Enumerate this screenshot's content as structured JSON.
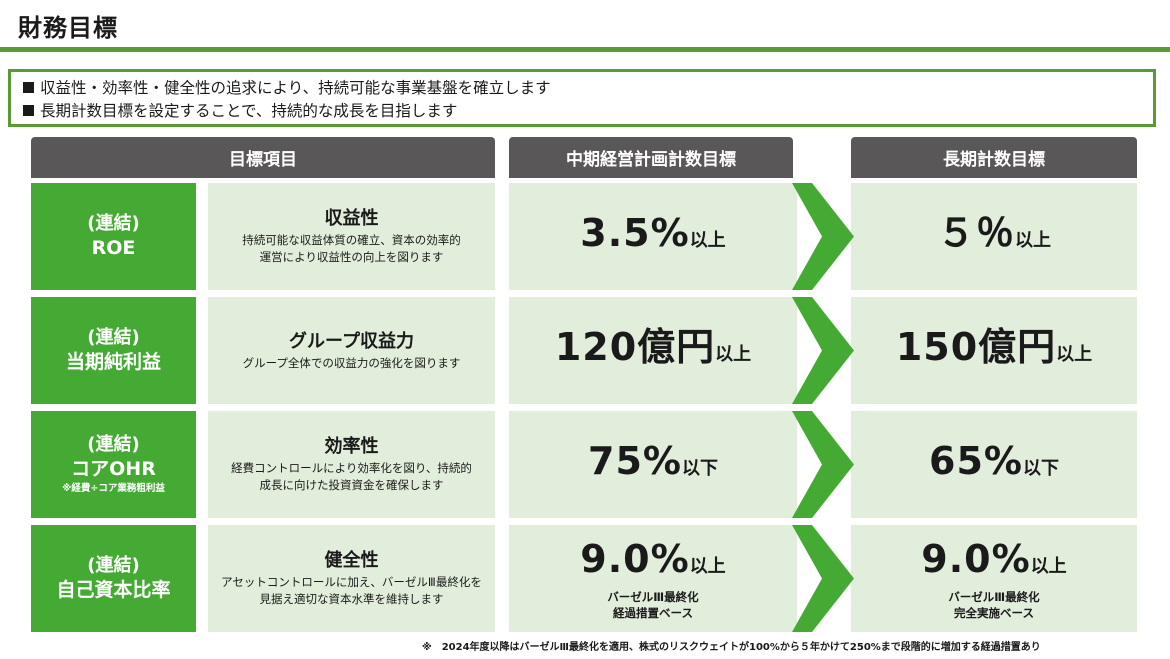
{
  "title": "財務目標",
  "summary": [
    "■",
    "収益性・効率性・健全性の追求により、持続可能な事業基盤を確立します",
    "長期計数目標を設定することで、持続的な成長を目指します"
  ],
  "headers": {
    "items": "目標項目",
    "mid_term": "中期経営計画計数目標",
    "long_term": "長期計数目標"
  },
  "rows": [
    {
      "scope": "(連結)",
      "metric": "ROE",
      "metric_note": "",
      "category": "収益性",
      "description": [
        "持続可能な収益体質の確立、資本の効率的",
        "運営により収益性の向上を図ります"
      ],
      "mid_value": "3.5%",
      "mid_suffix": "以上",
      "mid_note": [
        "",
        ""
      ],
      "long_value": "５％",
      "long_suffix": "以上",
      "long_note": [
        "",
        ""
      ]
    },
    {
      "scope": "(連結)",
      "metric": "当期純利益",
      "metric_note": "",
      "category": "グループ収益力",
      "description": [
        "グループ全体での収益力の強化を図ります",
        ""
      ],
      "mid_value": "120億円",
      "mid_suffix": "以上",
      "mid_note": [
        "",
        ""
      ],
      "long_value": "150億円",
      "long_suffix": "以上",
      "long_note": [
        "",
        ""
      ]
    },
    {
      "scope": "(連結)",
      "metric": "コアOHR",
      "metric_note": "※経費÷コア業務粗利益",
      "category": "効率性",
      "description": [
        "経費コントロールにより効率化を図り、持続的",
        "成長に向けた投資資金を確保します"
      ],
      "mid_value": "75%",
      "mid_suffix": "以下",
      "mid_note": [
        "",
        ""
      ],
      "long_value": "65%",
      "long_suffix": "以下",
      "long_note": [
        "",
        ""
      ]
    },
    {
      "scope": "(連結)",
      "metric": "自己資本比率",
      "metric_note": "",
      "category": "健全性",
      "description": [
        "アセットコントロールに加え、バーゼルⅢ最終化を",
        "見据え適切な資本水準を維持します"
      ],
      "mid_value": "9.0%",
      "mid_suffix": "以上",
      "mid_note": [
        "バーゼルⅢ最終化",
        "経過措置ベース"
      ],
      "long_value": "9.0%",
      "long_suffix": "以上",
      "long_note": [
        "バーゼルⅢ最終化",
        "完全実施ベース"
      ]
    }
  ],
  "footnote": "※　2024年度以降はバーゼルⅢ最終化を適用、株式のリスクウェイトが100%から５年かけて250%まで段階的に増加する経過措置あり",
  "colors": {
    "accent_green": "#45aa33",
    "rule_green": "#5a9a32",
    "light_green": "#e1eedb",
    "header_gray": "#595757",
    "chevron_green": "#45aa33"
  }
}
